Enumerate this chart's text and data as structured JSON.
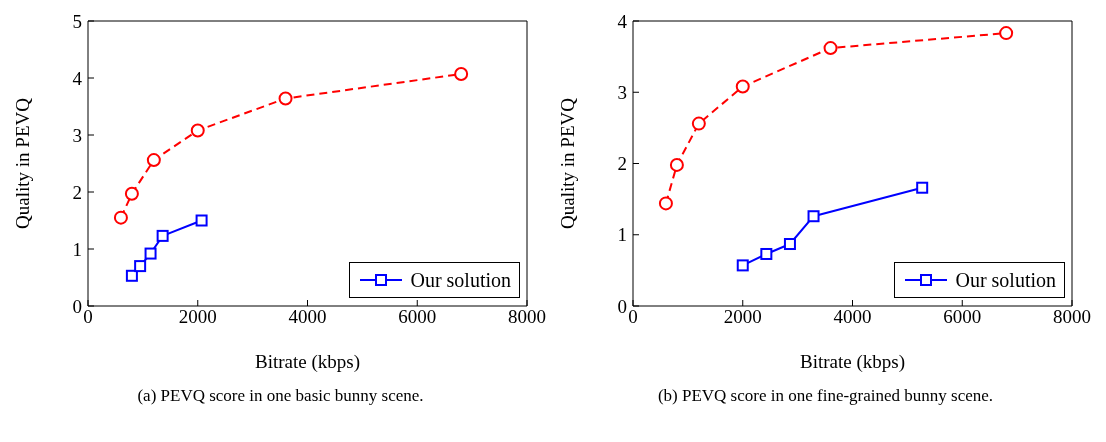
{
  "chart_data": [
    {
      "type": "line",
      "xlabel": "Bitrate (kbps)",
      "ylabel": "Quality in PEVQ",
      "annotations": [
        "(a)  PEVQ score in one basic bunny scene."
      ],
      "xlim": [
        0,
        8000
      ],
      "xticks": [
        0,
        2000,
        4000,
        6000,
        8000
      ],
      "ylim": [
        0,
        5
      ],
      "yticks": [
        0,
        1,
        2,
        3,
        4,
        5
      ],
      "legend": "bottom right",
      "grid": false,
      "series": [
        {
          "name": "Our solution",
          "color": "#0000ff",
          "marker": "square",
          "line_style": "solid",
          "x": [
            800,
            950,
            1140,
            1360,
            2070
          ],
          "values": [
            0.53,
            0.7,
            0.92,
            1.23,
            1.5
          ]
        },
        {
          "color": "#ff0000",
          "marker": "circle",
          "line_style": "dashed",
          "x": [
            600,
            800,
            1200,
            2000,
            3600,
            6800
          ],
          "values": [
            1.55,
            1.97,
            2.56,
            3.08,
            3.64,
            4.07
          ]
        }
      ]
    },
    {
      "type": "line",
      "xlabel": "Bitrate (kbps)",
      "ylabel": "Quality in PEVQ",
      "annotations": [
        "(b)  PEVQ score in one fine-grained bunny scene."
      ],
      "xlim": [
        0,
        8000
      ],
      "xticks": [
        0,
        2000,
        4000,
        6000,
        8000
      ],
      "ylim": [
        0,
        4
      ],
      "yticks": [
        0,
        1,
        2,
        3,
        4
      ],
      "legend": "bottom right",
      "grid": false,
      "series": [
        {
          "name": "Our solution",
          "color": "#0000ff",
          "marker": "square",
          "line_style": "solid",
          "x": [
            2000,
            2430,
            2860,
            3290,
            5270
          ],
          "values": [
            0.57,
            0.73,
            0.87,
            1.26,
            1.66
          ]
        },
        {
          "color": "#ff0000",
          "marker": "circle",
          "line_style": "dashed",
          "x": [
            600,
            800,
            1200,
            2000,
            3600,
            6800
          ],
          "values": [
            1.44,
            1.98,
            2.56,
            3.08,
            3.62,
            3.83
          ]
        }
      ]
    }
  ]
}
